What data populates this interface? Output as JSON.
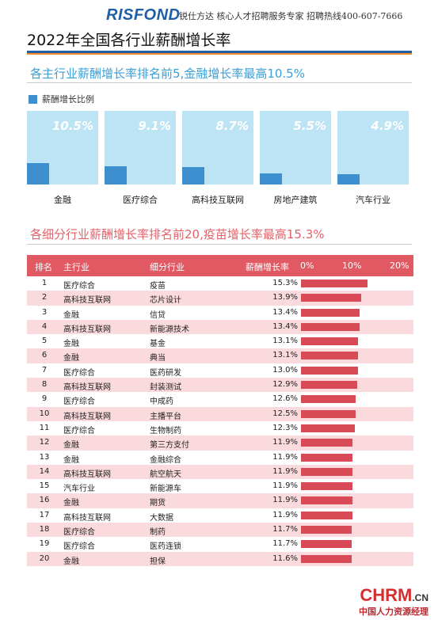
{
  "header": {
    "logo": "RISFOND",
    "tagline": "锐仕方达 核心人才招聘服务专家 招聘热线400-607-7666",
    "title": "2022年全国各行业薪酬增长率"
  },
  "section1": {
    "title": "各主行业薪酬增长率排名前5,金融增长率最高10.5%",
    "legend": "薪酬增长比例"
  },
  "section2": {
    "title": "各细分行业薪酬增长率排名前20,疫苗增长率最高15.3%"
  },
  "table_headers": {
    "rank": "排名",
    "main": "主行业",
    "sub": "细分行业",
    "rate": "薪酬增长率",
    "tick0": "0%",
    "tick1": "10%",
    "tick2": "20%"
  },
  "chart_data": [
    {
      "type": "bar",
      "categories": [
        "金融",
        "医疗综合",
        "高科技互联网",
        "房地产建筑",
        "汽车行业"
      ],
      "series": [
        {
          "name": "薪酬增长比例",
          "values": [
            10.5,
            9.1,
            8.7,
            5.5,
            4.9
          ]
        }
      ],
      "value_labels": [
        "10.5%",
        "9.1%",
        "8.7%",
        "5.5%",
        "4.9%"
      ],
      "color": "#3d8fd0",
      "panel_color": "#bde4f5",
      "ylim": [
        0,
        36
      ]
    },
    {
      "type": "table",
      "color": "#d94a57",
      "xlim": [
        0,
        20
      ],
      "rows": [
        {
          "rank": "1",
          "main": "医疗综合",
          "sub": "疫苗",
          "pct": "15.3%",
          "value": 15.3
        },
        {
          "rank": "2",
          "main": "高科技互联网",
          "sub": "芯片设计",
          "pct": "13.9%",
          "value": 13.9
        },
        {
          "rank": "3",
          "main": "金融",
          "sub": "信贷",
          "pct": "13.4%",
          "value": 13.4
        },
        {
          "rank": "4",
          "main": "高科技互联网",
          "sub": "新能源技术",
          "pct": "13.4%",
          "value": 13.4
        },
        {
          "rank": "5",
          "main": "金融",
          "sub": "基金",
          "pct": "13.1%",
          "value": 13.1
        },
        {
          "rank": "6",
          "main": "金融",
          "sub": "典当",
          "pct": "13.1%",
          "value": 13.1
        },
        {
          "rank": "7",
          "main": "医疗综合",
          "sub": "医药研发",
          "pct": "13.0%",
          "value": 13.0
        },
        {
          "rank": "8",
          "main": "高科技互联网",
          "sub": "封装测试",
          "pct": "12.9%",
          "value": 12.9
        },
        {
          "rank": "9",
          "main": "医疗综合",
          "sub": "中成药",
          "pct": "12.6%",
          "value": 12.6
        },
        {
          "rank": "10",
          "main": "高科技互联网",
          "sub": "主播平台",
          "pct": "12.5%",
          "value": 12.5
        },
        {
          "rank": "11",
          "main": "医疗综合",
          "sub": "生物制药",
          "pct": "12.3%",
          "value": 12.3
        },
        {
          "rank": "12",
          "main": "金融",
          "sub": "第三方支付",
          "pct": "11.9%",
          "value": 11.9
        },
        {
          "rank": "13",
          "main": "金融",
          "sub": "金融综合",
          "pct": "11.9%",
          "value": 11.9
        },
        {
          "rank": "14",
          "main": "高科技互联网",
          "sub": "航空航天",
          "pct": "11.9%",
          "value": 11.9
        },
        {
          "rank": "15",
          "main": "汽车行业",
          "sub": "新能源车",
          "pct": "11.9%",
          "value": 11.9
        },
        {
          "rank": "16",
          "main": "金融",
          "sub": "期货",
          "pct": "11.9%",
          "value": 11.9
        },
        {
          "rank": "17",
          "main": "高科技互联网",
          "sub": "大数据",
          "pct": "11.9%",
          "value": 11.9
        },
        {
          "rank": "18",
          "main": "医疗综合",
          "sub": "制药",
          "pct": "11.7%",
          "value": 11.7
        },
        {
          "rank": "19",
          "main": "医疗综合",
          "sub": "医药连锁",
          "pct": "11.7%",
          "value": 11.7
        },
        {
          "rank": "20",
          "main": "金融",
          "sub": "担保",
          "pct": "11.6%",
          "value": 11.6
        }
      ]
    }
  ],
  "footer": {
    "brand": "CHRM",
    "domain": ".CN",
    "subtitle": "中国人力资源经理"
  }
}
